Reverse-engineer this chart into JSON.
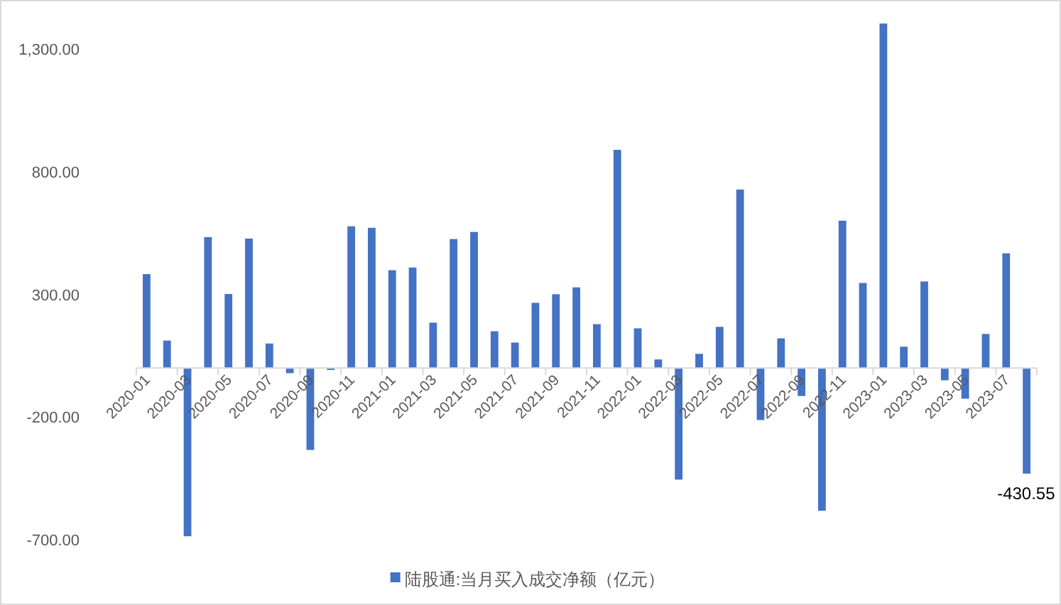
{
  "chart_data": {
    "type": "bar",
    "categories": [
      "2020-01",
      null,
      "2020-03",
      null,
      "2020-05",
      null,
      "2020-07",
      null,
      "2020-09",
      null,
      "2020-11",
      null,
      "2021-01",
      null,
      "2021-03",
      null,
      "2021-05",
      null,
      "2021-07",
      null,
      "2021-09",
      null,
      "2021-11",
      null,
      "2022-01",
      null,
      "2022-03",
      null,
      "2022-05",
      null,
      "2022-07",
      null,
      "2022-09",
      null,
      "2022-11",
      null,
      "2023-01",
      null,
      "2023-03",
      null,
      "2023-05",
      null,
      "2023-07",
      null
    ],
    "series": [
      {
        "name": "陆股通:当月买入成交净额（亿元）",
        "color": "#4472c4",
        "values": [
          383,
          112,
          -686,
          534,
          302,
          528,
          100,
          -21,
          -334,
          -8,
          578,
          572,
          399,
          410,
          185,
          526,
          555,
          150,
          104,
          266,
          301,
          329,
          179,
          890,
          162,
          35,
          -455,
          58,
          168,
          728,
          -212,
          121,
          -114,
          -582,
          601,
          347,
          1405,
          87,
          353,
          -50,
          -125,
          139,
          468,
          -430.55
        ],
        "value_labels": [
          null,
          null,
          null,
          null,
          null,
          null,
          null,
          null,
          null,
          null,
          null,
          null,
          null,
          null,
          null,
          null,
          null,
          null,
          null,
          null,
          null,
          null,
          null,
          null,
          null,
          null,
          null,
          null,
          null,
          null,
          null,
          null,
          null,
          null,
          null,
          null,
          null,
          null,
          null,
          null,
          null,
          null,
          null,
          "-430.55"
        ]
      }
    ],
    "ylim": [
      -700,
      1420
    ],
    "yticks": [
      {
        "value": -700,
        "label": "-700.00"
      },
      {
        "value": -200,
        "label": "-200.00"
      },
      {
        "value": 300,
        "label": "300.00"
      },
      {
        "value": 800,
        "label": "800.00"
      },
      {
        "value": 1300,
        "label": "1,300.00"
      }
    ],
    "legend": "bottom"
  }
}
